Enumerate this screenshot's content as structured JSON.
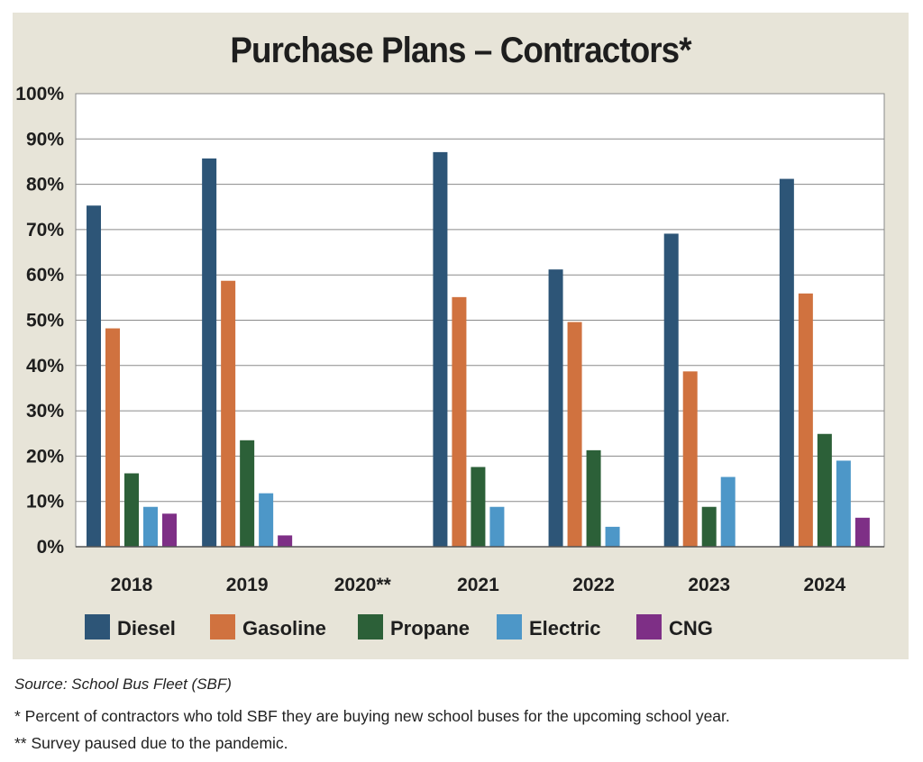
{
  "chart_data": {
    "type": "bar",
    "title": "Purchase Plans – Contractors*",
    "categories": [
      "2018",
      "2019",
      "2020**",
      "2021",
      "2022",
      "2023",
      "2024"
    ],
    "series": [
      {
        "name": "Diesel",
        "color": "#2d5577",
        "values": [
          75.3,
          85.7,
          null,
          87.1,
          61.2,
          69.1,
          81.2
        ]
      },
      {
        "name": "Gasoline",
        "color": "#d0723f",
        "values": [
          48.2,
          58.7,
          null,
          55.1,
          49.6,
          38.7,
          55.9
        ]
      },
      {
        "name": "Propane",
        "color": "#2c6038",
        "values": [
          16.2,
          23.5,
          null,
          17.6,
          21.3,
          8.8,
          24.9
        ]
      },
      {
        "name": "Electric",
        "color": "#4d97c8",
        "values": [
          8.8,
          11.8,
          null,
          8.8,
          4.4,
          15.4,
          19.0
        ]
      },
      {
        "name": "CNG",
        "color": "#7e2f86",
        "values": [
          7.3,
          2.5,
          null,
          null,
          null,
          null,
          6.4
        ]
      }
    ],
    "yticks": [
      "0%",
      "10%",
      "20%",
      "30%",
      "40%",
      "50%",
      "60%",
      "70%",
      "80%",
      "90%",
      "100%"
    ],
    "ylim": [
      0,
      100
    ],
    "xlabel": "",
    "ylabel": "",
    "grid": true,
    "legend_position": "bottom"
  },
  "footer": {
    "source": "Source: School Bus Fleet (SBF)",
    "note1": "* Percent of contractors who told SBF they are buying new school buses for the upcoming school year.",
    "note2": "** Survey paused due to the pandemic."
  }
}
